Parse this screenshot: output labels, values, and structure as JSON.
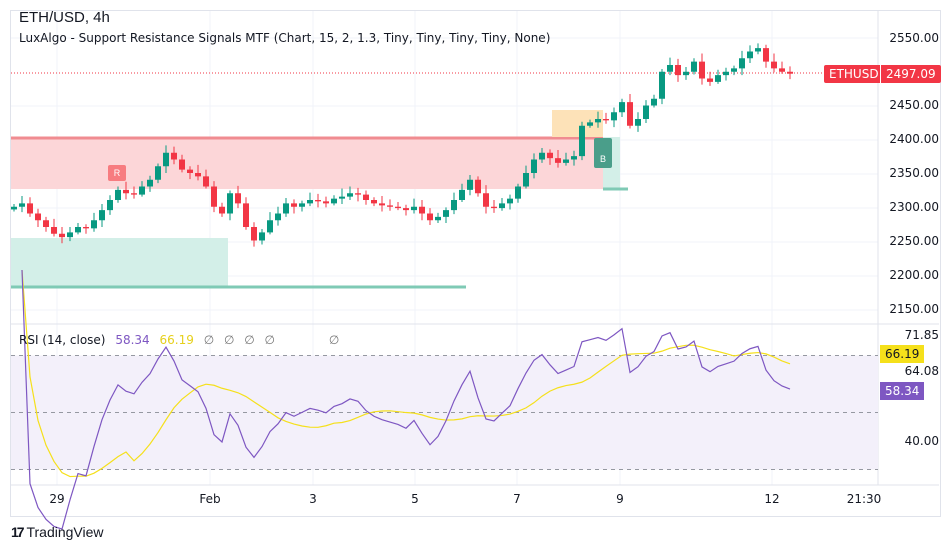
{
  "header": {
    "title": "ETH/USD, 4h",
    "indicator": "LuxAlgo - Support Resistance Signals MTF (Chart, 15, 2, 1.3, Tiny, Tiny, Tiny, Tiny, None)"
  },
  "price_axis": {
    "ticks": [
      "2550.00",
      "2450.00",
      "2400.00",
      "2350.00",
      "2300.00",
      "2250.00",
      "2200.00",
      "2150.00"
    ],
    "symbol_tag": "ETHUSD",
    "last_price": "2497.09",
    "tag_color": "#f23645"
  },
  "rsi": {
    "label": "RSI (14, close)",
    "value": "58.34",
    "ma_value": "66.19",
    "extras": [
      "∅",
      "∅",
      "∅",
      "∅",
      "∅"
    ],
    "axis_ticks": [
      "71.85",
      "64.08",
      "40.00"
    ],
    "rsi_color": "#7e57c2",
    "ma_color": "#f5e01b"
  },
  "time_axis": [
    "29",
    "Feb",
    "3",
    "5",
    "7",
    "9",
    "12",
    "21:30"
  ],
  "signals": {
    "resistance_label": "R",
    "breakout_label": "B"
  },
  "footer": {
    "brand": "TradingView"
  },
  "chart_data": {
    "type": "candlestick",
    "symbol": "ETH/USD",
    "interval": "4h",
    "ylim": [
      2150,
      2560
    ],
    "closes": [
      2300,
      2305,
      2290,
      2280,
      2270,
      2260,
      2255,
      2262,
      2270,
      2268,
      2280,
      2295,
      2310,
      2325,
      2320,
      2318,
      2330,
      2340,
      2360,
      2380,
      2370,
      2355,
      2350,
      2345,
      2330,
      2300,
      2290,
      2320,
      2305,
      2270,
      2250,
      2262,
      2280,
      2290,
      2305,
      2300,
      2305,
      2310,
      2308,
      2305,
      2312,
      2315,
      2320,
      2318,
      2310,
      2305,
      2302,
      2300,
      2298,
      2295,
      2300,
      2290,
      2280,
      2285,
      2295,
      2310,
      2325,
      2340,
      2320,
      2300,
      2298,
      2305,
      2312,
      2330,
      2350,
      2370,
      2380,
      2372,
      2365,
      2370,
      2375,
      2420,
      2425,
      2430,
      2428,
      2440,
      2455,
      2420,
      2430,
      2450,
      2460,
      2500,
      2510,
      2495,
      2500,
      2515,
      2490,
      2485,
      2495,
      2500,
      2505,
      2520,
      2530,
      2535,
      2515,
      2505,
      2500,
      2497.09
    ],
    "up_color": "#089981",
    "down_color": "#f23645"
  }
}
